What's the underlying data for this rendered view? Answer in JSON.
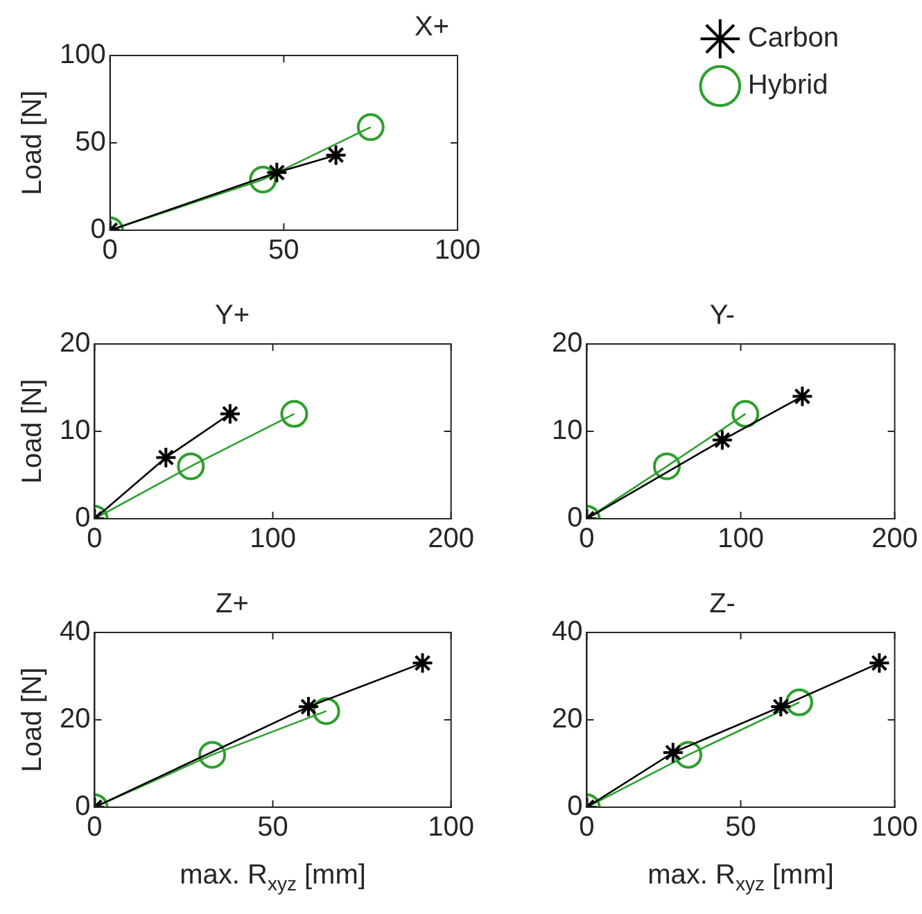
{
  "chart_data": [
    {
      "type": "line",
      "title": "X+",
      "ylabel": "Load [N]",
      "xlim": [
        0,
        100
      ],
      "xticks": [
        0,
        50,
        100
      ],
      "ylim": [
        0,
        100
      ],
      "yticks": [
        0,
        50,
        100
      ],
      "legend": "right",
      "line_style": "solid",
      "series": [
        {
          "name": "Carbon",
          "color": "#000000",
          "marker": "cross",
          "x": [
            0,
            48,
            65
          ],
          "values": [
            0,
            33,
            43
          ]
        },
        {
          "name": "Hybrid",
          "color": "#2ca02c",
          "marker": "circle",
          "x": [
            0,
            44,
            75
          ],
          "values": [
            0,
            29,
            59
          ]
        }
      ]
    },
    {
      "type": "line",
      "title": "Y+",
      "ylabel": "Load [N]",
      "xlim": [
        0,
        200
      ],
      "xticks": [
        0,
        100,
        200
      ],
      "ylim": [
        0,
        20
      ],
      "yticks": [
        0,
        10,
        20
      ],
      "line_style": "solid",
      "series": [
        {
          "color": "#000000",
          "marker": "cross",
          "x": [
            0,
            40,
            76
          ],
          "values": [
            0,
            7,
            12
          ]
        },
        {
          "color": "#2ca02c",
          "marker": "circle",
          "x": [
            0,
            54,
            112
          ],
          "values": [
            0,
            6,
            12
          ]
        }
      ]
    },
    {
      "type": "line",
      "title": "Y-",
      "xlim": [
        0,
        200
      ],
      "xticks": [
        0,
        100,
        200
      ],
      "ylim": [
        0,
        20
      ],
      "yticks": [
        0,
        10,
        20
      ],
      "line_style": "solid",
      "series": [
        {
          "color": "#000000",
          "marker": "cross",
          "x": [
            0,
            88,
            140
          ],
          "values": [
            0,
            9,
            14
          ]
        },
        {
          "color": "#2ca02c",
          "marker": "circle",
          "x": [
            0,
            52,
            103
          ],
          "values": [
            0,
            6,
            12
          ]
        }
      ]
    },
    {
      "type": "line",
      "title": "Z+",
      "ylabel": "Load [N]",
      "xlabel": "max. R$_{xyz}$ [mm]",
      "xlim": [
        0,
        100
      ],
      "xticks": [
        0,
        50,
        100
      ],
      "ylim": [
        0,
        40
      ],
      "yticks": [
        0,
        20,
        40
      ],
      "line_style": "solid",
      "series": [
        {
          "color": "#000000",
          "marker": "cross",
          "x": [
            0,
            60,
            92
          ],
          "values": [
            0,
            23,
            33
          ]
        },
        {
          "color": "#2ca02c",
          "marker": "circle",
          "x": [
            0,
            33,
            65
          ],
          "values": [
            0,
            12,
            22
          ]
        }
      ]
    },
    {
      "type": "line",
      "title": "Z-",
      "xlabel": "max. R$_{xyz}$ [mm]",
      "xlim": [
        0,
        100
      ],
      "xticks": [
        0,
        50,
        100
      ],
      "ylim": [
        0,
        40
      ],
      "yticks": [
        0,
        20,
        40
      ],
      "line_style": "solid",
      "series": [
        {
          "color": "#000000",
          "marker": "cross",
          "x": [
            0,
            28,
            63,
            95
          ],
          "values": [
            0,
            12.5,
            23,
            33
          ]
        },
        {
          "color": "#2ca02c",
          "marker": "circle",
          "x": [
            0,
            33,
            69
          ],
          "values": [
            0,
            12,
            24
          ]
        }
      ]
    }
  ]
}
